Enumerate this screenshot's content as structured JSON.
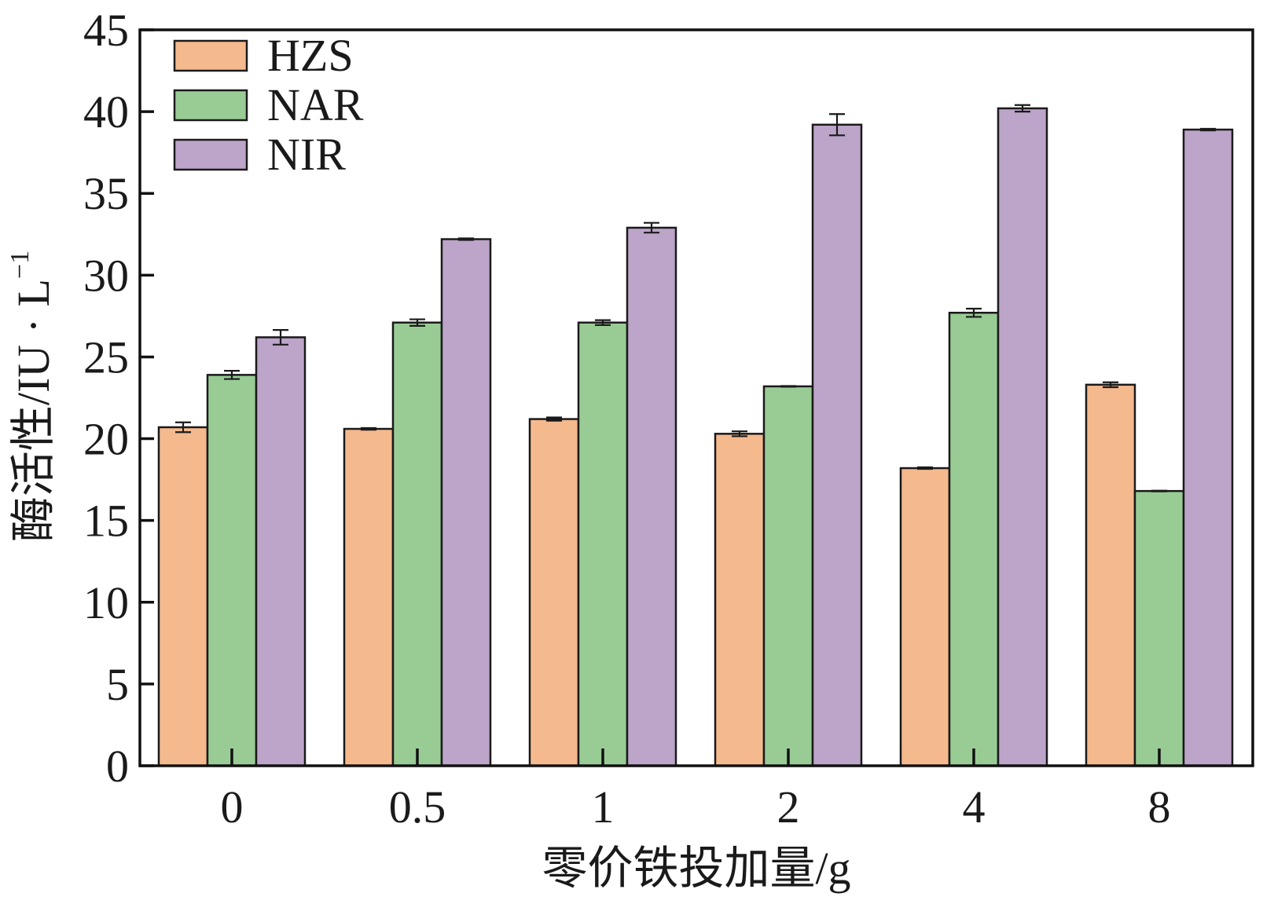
{
  "chart_data": {
    "type": "bar",
    "title": "",
    "xlabel": "零价铁投加量/g",
    "ylabel": "酶活性/IU · L",
    "ylabel_sup": "−1",
    "categories": [
      "0",
      "0.5",
      "1",
      "2",
      "4",
      "8"
    ],
    "ylim": [
      0,
      45
    ],
    "yticks": [
      0,
      5,
      10,
      15,
      20,
      25,
      30,
      35,
      40,
      45
    ],
    "legend_position": "top-left",
    "series": [
      {
        "name": "HZS",
        "color": "#f5b98e",
        "values": [
          20.7,
          20.6,
          21.2,
          20.3,
          18.2,
          23.3
        ],
        "errors": [
          0.3,
          0.05,
          0.1,
          0.15,
          0.05,
          0.15
        ]
      },
      {
        "name": "NAR",
        "color": "#99cc95",
        "values": [
          23.9,
          27.1,
          27.1,
          23.2,
          27.7,
          16.8
        ],
        "errors": [
          0.25,
          0.2,
          0.15,
          0.02,
          0.25,
          0.02
        ]
      },
      {
        "name": "NIR",
        "color": "#bda4c9",
        "values": [
          26.2,
          32.2,
          32.9,
          39.2,
          40.2,
          38.9
        ],
        "errors": [
          0.45,
          0.05,
          0.3,
          0.65,
          0.2,
          0.05
        ]
      }
    ]
  }
}
